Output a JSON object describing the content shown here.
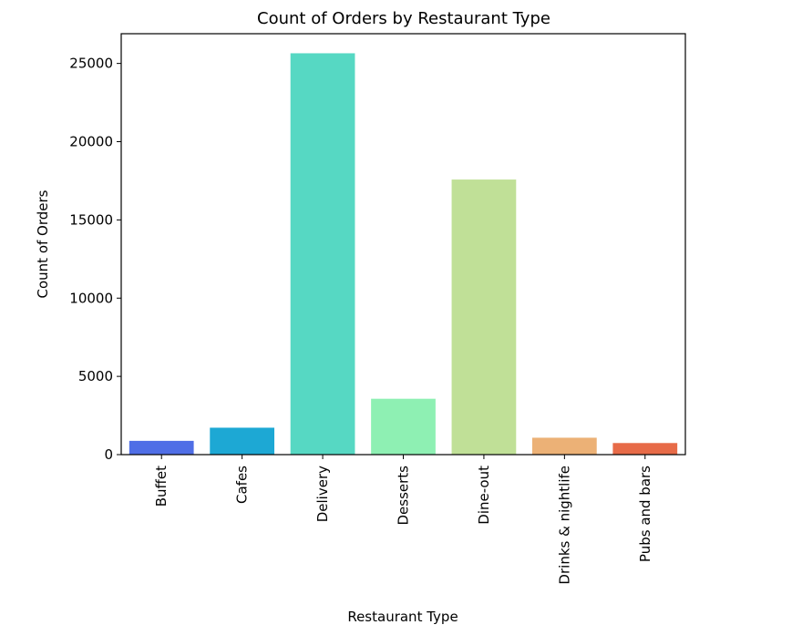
{
  "chart_data": {
    "type": "bar",
    "title": "Count of Orders by Restaurant Type",
    "xlabel": "Restaurant Type",
    "ylabel": "Count of Orders",
    "categories": [
      "Buffet",
      "Cafes",
      "Delivery",
      "Desserts",
      "Dine-out",
      "Drinks & nightlife",
      "Pubs and bars"
    ],
    "values": [
      880,
      1720,
      25650,
      3570,
      17580,
      1080,
      740
    ],
    "colors": [
      "#4f6ee6",
      "#1da8d4",
      "#56d8c3",
      "#8ef0b3",
      "#c0e097",
      "#ecb176",
      "#e76b48"
    ],
    "ylim": [
      0,
      26900
    ],
    "yticks": [
      0,
      5000,
      10000,
      15000,
      20000,
      25000
    ],
    "grid": false,
    "legend": "none"
  }
}
